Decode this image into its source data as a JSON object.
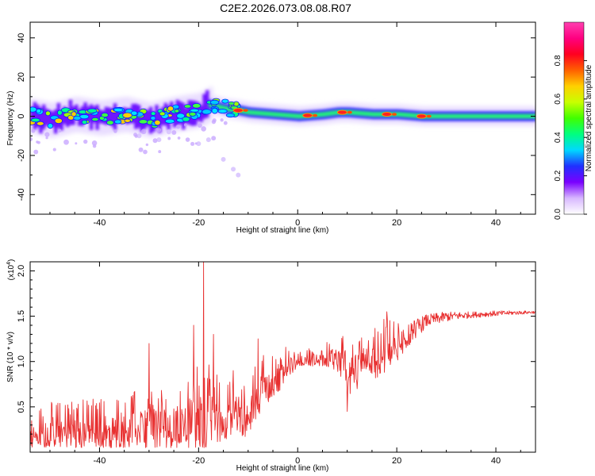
{
  "title": "C2E2.2026.073.08.08.R07",
  "chart_data": [
    {
      "type": "heatmap",
      "name": "spectrogram",
      "xlabel": "Height of straight line (km)",
      "ylabel": "Frequency (Hz)",
      "xlim": [
        -54,
        48
      ],
      "ylim": [
        -50,
        48
      ],
      "xticks": [
        -40,
        -20,
        0,
        20,
        40
      ],
      "yticks": [
        -40,
        -20,
        0,
        20,
        40
      ],
      "xtick_labels": [
        "-40",
        "-20",
        "0",
        "20",
        "40"
      ],
      "ytick_labels": [
        "-40",
        "-20",
        "0",
        "20",
        "40"
      ],
      "center_frequency": [
        [
          -54,
          0
        ],
        [
          -50,
          -2
        ],
        [
          -45,
          1
        ],
        [
          -40,
          -1
        ],
        [
          -35,
          1
        ],
        [
          -30,
          -2
        ],
        [
          -25,
          1
        ],
        [
          -20,
          3
        ],
        [
          -18,
          6
        ],
        [
          -15,
          4
        ],
        [
          -12,
          3
        ],
        [
          -10,
          2
        ],
        [
          -5,
          1
        ],
        [
          0,
          0
        ],
        [
          5,
          1
        ],
        [
          8,
          2
        ],
        [
          10,
          2
        ],
        [
          15,
          1
        ],
        [
          20,
          1
        ],
        [
          25,
          0
        ],
        [
          30,
          0
        ],
        [
          35,
          0
        ],
        [
          40,
          0
        ],
        [
          48,
          0
        ]
      ],
      "noisy_band_x": [
        -54,
        -18
      ],
      "hot_spots_x": [
        -12,
        2,
        9,
        18,
        25
      ],
      "scatter_outliers": [
        [
          -32,
          -10
        ],
        [
          -28,
          -12
        ],
        [
          -20,
          -14
        ],
        [
          -15,
          -22
        ],
        [
          -13,
          -27
        ],
        [
          -12,
          -30
        ],
        [
          -18,
          -12
        ],
        [
          -26,
          -8
        ]
      ]
    },
    {
      "type": "colorbar",
      "name": "colorbar",
      "label": "Normalized spectral amplitude",
      "range": [
        0.0,
        1.0
      ],
      "ticks": [
        0.0,
        0.2,
        0.4,
        0.6,
        0.8
      ],
      "tick_labels": [
        "0.0",
        "0.2",
        "0.4",
        "0.6",
        "0.8"
      ],
      "colors": [
        "#ffffff",
        "#d8b8ff",
        "#7a00ff",
        "#2030ff",
        "#00d8ff",
        "#00ff80",
        "#40ff00",
        "#c8ff00",
        "#ffd000",
        "#ff6000",
        "#ff0020",
        "#ff0080",
        "#ff40b0"
      ]
    },
    {
      "type": "line",
      "name": "snr",
      "xlabel": "Height of straight line (km)",
      "ylabel": "SNR (10 * v/v)",
      "scale_label": "(x10",
      "scale_exponent": "4",
      "scale_suffix": ")",
      "xlim": [
        -54,
        48
      ],
      "ylim": [
        0,
        2.1
      ],
      "xticks": [
        -40,
        -20,
        0,
        20,
        40
      ],
      "yticks": [
        0.5,
        1.0,
        1.5,
        2.0
      ],
      "xtick_labels": [
        "-40",
        "-20",
        "0",
        "20",
        "40"
      ],
      "ytick_labels": [
        "0.5",
        "1.0",
        "1.5",
        "2.0"
      ],
      "color": "#e83030",
      "envelope": [
        [
          -54,
          0.05,
          0.45
        ],
        [
          -50,
          0.05,
          0.55
        ],
        [
          -45,
          0.05,
          0.6
        ],
        [
          -40,
          0.05,
          0.62
        ],
        [
          -35,
          0.05,
          0.65
        ],
        [
          -30,
          0.05,
          0.75
        ],
        [
          -25,
          0.05,
          0.8
        ],
        [
          -22,
          0.05,
          0.9
        ],
        [
          -20,
          0.05,
          1.0
        ],
        [
          -18,
          0.05,
          1.05
        ],
        [
          -16,
          0.1,
          0.9
        ],
        [
          -14,
          0.15,
          0.8
        ],
        [
          -12,
          0.2,
          0.75
        ],
        [
          -10,
          0.15,
          0.75
        ],
        [
          -8,
          0.4,
          1.15
        ],
        [
          -6,
          0.55,
          1.2
        ],
        [
          -4,
          0.65,
          1.2
        ],
        [
          -2,
          0.8,
          1.15
        ],
        [
          0,
          0.95,
          1.1
        ],
        [
          2,
          0.95,
          1.15
        ],
        [
          5,
          0.95,
          1.2
        ],
        [
          8,
          0.9,
          1.3
        ],
        [
          10,
          0.6,
          1.3
        ],
        [
          12,
          0.7,
          1.35
        ],
        [
          14,
          0.9,
          1.35
        ],
        [
          16,
          0.8,
          1.45
        ],
        [
          18,
          0.9,
          1.5
        ],
        [
          20,
          1.0,
          1.45
        ],
        [
          23,
          1.2,
          1.45
        ],
        [
          26,
          1.38,
          1.52
        ],
        [
          30,
          1.44,
          1.55
        ],
        [
          35,
          1.48,
          1.55
        ],
        [
          40,
          1.5,
          1.56
        ],
        [
          45,
          1.52,
          1.56
        ],
        [
          48,
          1.53,
          1.56
        ]
      ],
      "spikes": [
        [
          -30,
          1.2
        ],
        [
          -21,
          1.4
        ],
        [
          -19,
          2.1
        ],
        [
          -17,
          1.3
        ],
        [
          -13,
          0.9
        ],
        [
          -8,
          1.25
        ],
        [
          10,
          0.45
        ],
        [
          18,
          1.55
        ]
      ]
    }
  ]
}
